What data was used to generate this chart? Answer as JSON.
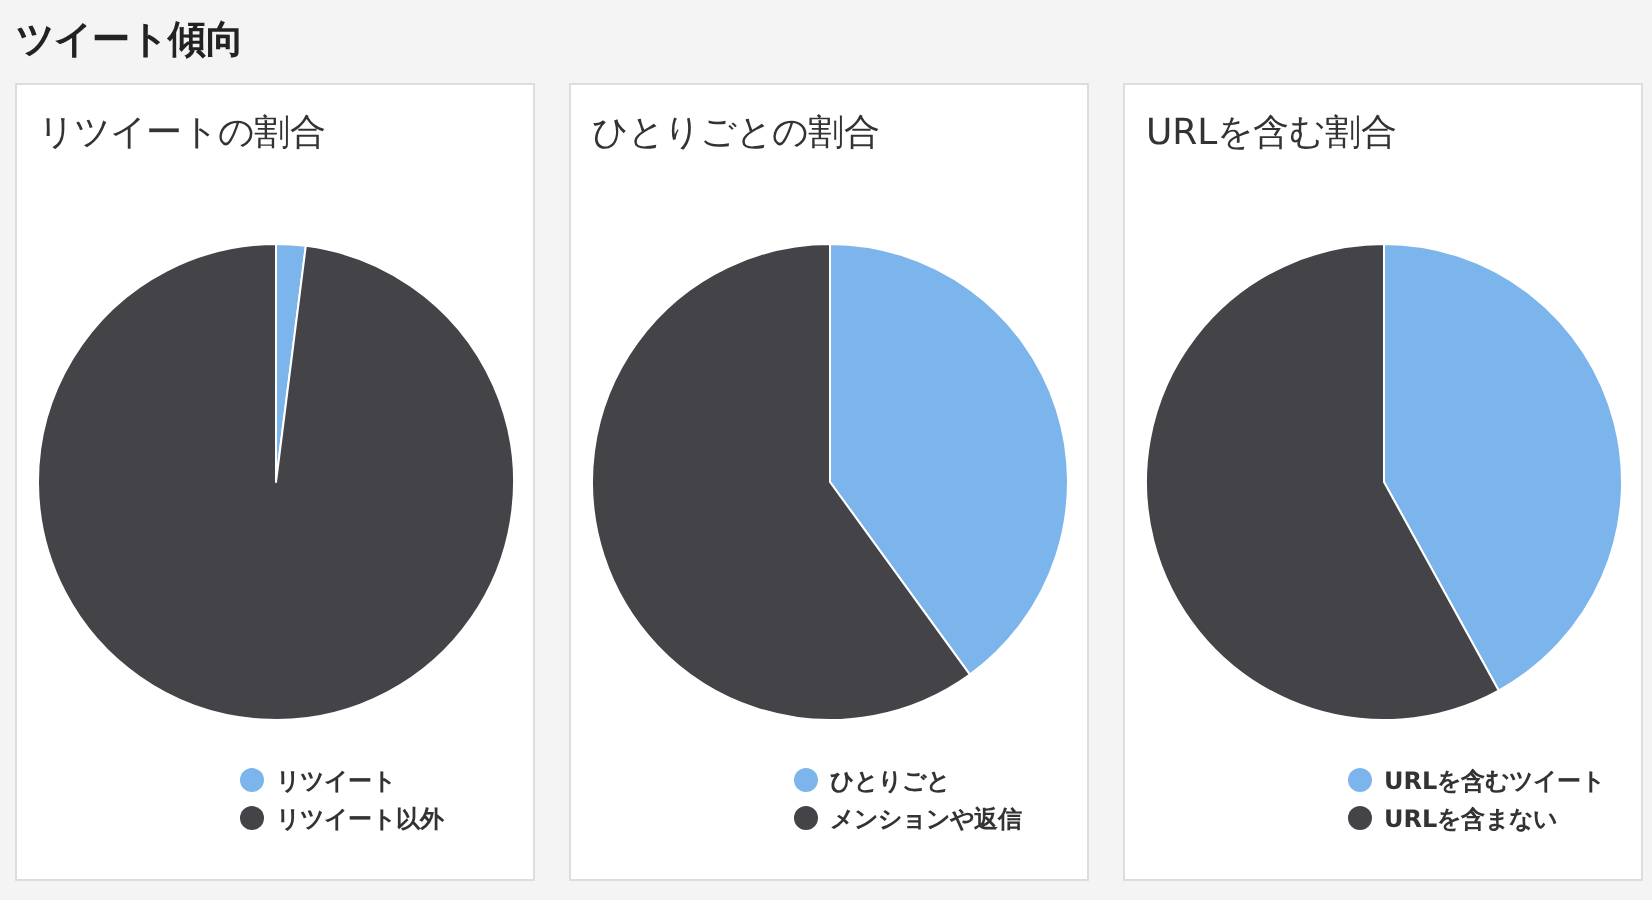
{
  "chart_data": [
    {
      "type": "pie",
      "title": "リツイートの割合",
      "categories": [
        "リツイート",
        "リツイート以外"
      ],
      "values": [
        2,
        98
      ],
      "colors": [
        "#7cb5ec",
        "#434348"
      ],
      "legend": "bottom right",
      "annotations": [
        "ツイート傾向"
      ]
    },
    {
      "type": "pie",
      "title": "ひとりごとの割合",
      "categories": [
        "ひとりごと",
        "メンションや返信"
      ],
      "values": [
        40,
        60
      ],
      "colors": [
        "#7cb5ec",
        "#434348"
      ],
      "legend": "bottom right"
    },
    {
      "type": "pie",
      "title": "URLを含む割合",
      "categories": [
        "URLを含むツイート",
        "URLを含まない"
      ],
      "values": [
        42,
        58
      ],
      "colors": [
        "#7cb5ec",
        "#434348"
      ],
      "legend": "bottom right"
    }
  ]
}
